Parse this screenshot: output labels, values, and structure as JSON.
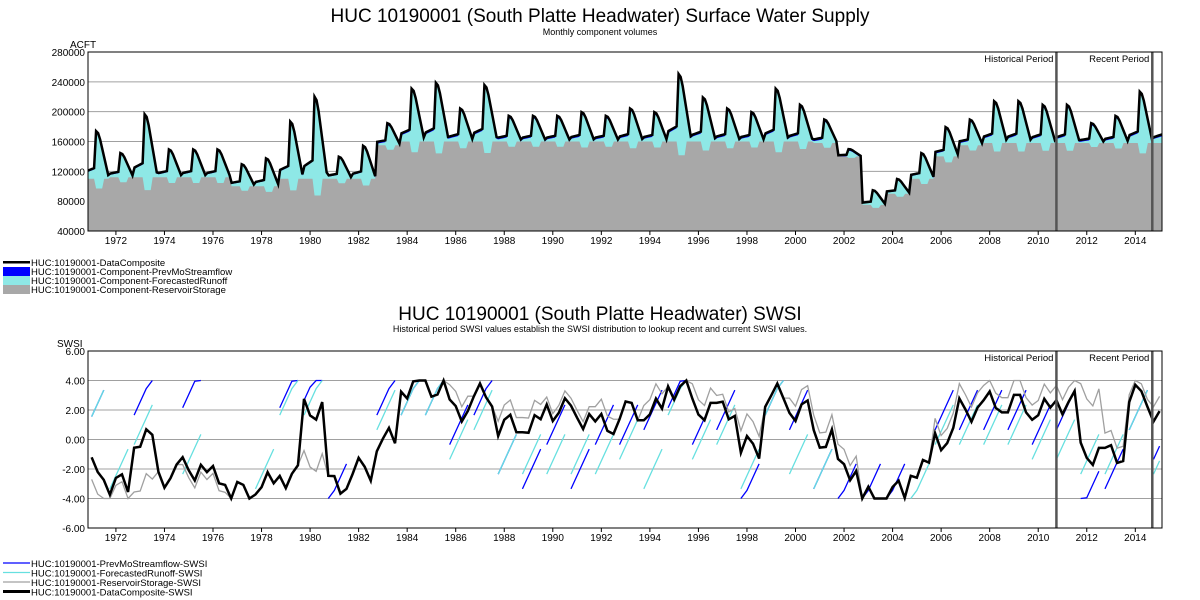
{
  "chart_data": [
    {
      "type": "area",
      "title": "HUC 10190001 (South Platte Headwater) Surface Water Supply",
      "subtitle": "Monthly component volumes",
      "ylabel": "ACFT",
      "ylim": [
        40000,
        280000
      ],
      "yticks": [
        "280000",
        "240000",
        "200000",
        "160000",
        "120000",
        "80000",
        "40000"
      ],
      "xticks": [
        "1972",
        "1974",
        "1976",
        "1978",
        "1980",
        "1982",
        "1984",
        "1986",
        "1988",
        "1990",
        "1992",
        "1994",
        "1996",
        "1998",
        "2000",
        "2002",
        "2004",
        "2006",
        "2008",
        "2010",
        "2012",
        "2014"
      ],
      "xlim": [
        1970.85,
        2015.1
      ],
      "periods": [
        {
          "label": "Historical Period",
          "end": 2010.75
        },
        {
          "label": "Recent Period",
          "end": 2014.7
        }
      ],
      "legend": [
        "HUC:10190001-DataComposite",
        "HUC:10190001-Component-PrevMoStreamflow",
        "HUC:10190001-Component-ForecastedRunoff",
        "HUC:10190001-Component-ReservoirStorage"
      ],
      "colors": {
        "composite": "#000000",
        "prevmo": "#0000ff",
        "forecast": "#8ee8e6",
        "storage": "#a8a8a8"
      },
      "years": [
        1971,
        1972,
        1973,
        1974,
        1975,
        1976,
        1977,
        1978,
        1979,
        1980,
        1981,
        1982,
        1983,
        1984,
        1985,
        1986,
        1987,
        1988,
        1989,
        1990,
        1991,
        1992,
        1993,
        1994,
        1995,
        1996,
        1997,
        1998,
        1999,
        2000,
        2001,
        2002,
        2003,
        2004,
        2005,
        2006,
        2007,
        2008,
        2009,
        2010,
        2011,
        2012,
        2013,
        2014,
        2015
      ],
      "peak": [
        175000,
        145000,
        198000,
        150000,
        150000,
        150000,
        130000,
        138000,
        188000,
        222000,
        140000,
        155000,
        185000,
        232000,
        240000,
        205000,
        237000,
        195000,
        195000,
        195000,
        200000,
        195000,
        205000,
        200000,
        252000,
        220000,
        205000,
        200000,
        232000,
        210000,
        190000,
        150000,
        95000,
        110000,
        145000,
        180000,
        190000,
        215000,
        215000,
        210000,
        210000,
        185000,
        195000,
        228000,
        210000
      ],
      "storage": [
        110000,
        112000,
        112000,
        112000,
        112000,
        112000,
        100000,
        100000,
        110000,
        110000,
        110000,
        110000,
        155000,
        160000,
        160000,
        160000,
        160000,
        160000,
        160000,
        160000,
        160000,
        160000,
        160000,
        160000,
        160000,
        160000,
        160000,
        160000,
        160000,
        160000,
        158000,
        140000,
        75000,
        90000,
        110000,
        140000,
        155000,
        158000,
        158000,
        158000,
        158000,
        158000,
        158000,
        158000,
        158000
      ]
    },
    {
      "type": "line",
      "title": "HUC 10190001 (South Platte Headwater) SWSI",
      "subtitle": "Historical period SWSI values establish the SWSI distribution to lookup recent and current SWSI values.",
      "ylabel": "SWSI",
      "ylim": [
        -6,
        6
      ],
      "yticks": [
        "6.00",
        "4.00",
        "2.00",
        "0.00",
        "-2.00",
        "-4.00",
        "-6.00"
      ],
      "legend": [
        "HUC:10190001-PrevMoStreamflow-SWSI",
        "HUC:10190001-ForecastedRunoff-SWSI",
        "HUC:10190001-ReservoirStorage-SWSI",
        "HUC:10190001-DataComposite-SWSI"
      ],
      "colors": [
        "#0000ff",
        "#66e0e0",
        "#a0a0a0",
        "#000000"
      ],
      "series": [
        {
          "name": "PrevMoStreamflow-SWSI",
          "values": [
            2,
            null,
            3,
            null,
            3.5,
            null,
            null,
            null,
            3.5,
            4,
            -3,
            null,
            3,
            3,
            3,
            1,
            3,
            -1,
            -2,
            1,
            -2,
            1,
            1,
            2,
            3.5,
            1,
            2,
            -3,
            3,
            2,
            -2,
            -3,
            -3,
            -3,
            null,
            2,
            2,
            2,
            2,
            1,
            2,
            -3.5,
            -2,
            2,
            0
          ]
        },
        {
          "name": "ForecastedRunoff-SWSI",
          "values": [
            2,
            -2,
            1,
            null,
            -1,
            null,
            null,
            -2,
            3,
            3,
            null,
            null,
            2,
            3,
            3,
            0,
            2,
            -1,
            -1,
            -1,
            -1,
            -1,
            0,
            -2,
            3,
            0,
            1,
            -2,
            3,
            -1,
            -2,
            null,
            null,
            null,
            -3,
            1,
            1,
            1,
            1,
            0,
            0,
            -1,
            -1,
            2,
            -1
          ]
        },
        {
          "name": "ReservoirStorage-SWSI",
          "values": [
            -3.5,
            -3.5,
            -3,
            -2.5,
            -2.5,
            -3,
            -3.5,
            -3,
            -2.5,
            -1.5,
            -3,
            -2,
            0,
            3.5,
            3.5,
            3,
            3,
            2,
            2,
            2.5,
            2,
            2,
            2,
            3,
            3.5,
            3,
            2.5,
            1,
            3,
            3,
            1,
            -1,
            -4,
            -3.5,
            -2,
            1,
            3,
            3.5,
            3.5,
            3,
            3.5,
            3,
            0,
            3.5,
            3
          ]
        },
        {
          "name": "DataComposite-SWSI",
          "values": [
            -2,
            -3,
            0,
            -2.5,
            -2,
            -2.5,
            -3.5,
            -3,
            -2.5,
            2,
            -3,
            -2,
            0,
            3.5,
            3.5,
            2,
            3,
            1,
            1,
            2,
            1.5,
            1,
            2,
            2,
            3.5,
            2,
            2,
            -0.5,
            3,
            2,
            0,
            -2,
            -4,
            -3.5,
            -2,
            0,
            2,
            2.5,
            2.5,
            2,
            2.5,
            -1,
            -1,
            3,
            2
          ]
        }
      ]
    }
  ]
}
